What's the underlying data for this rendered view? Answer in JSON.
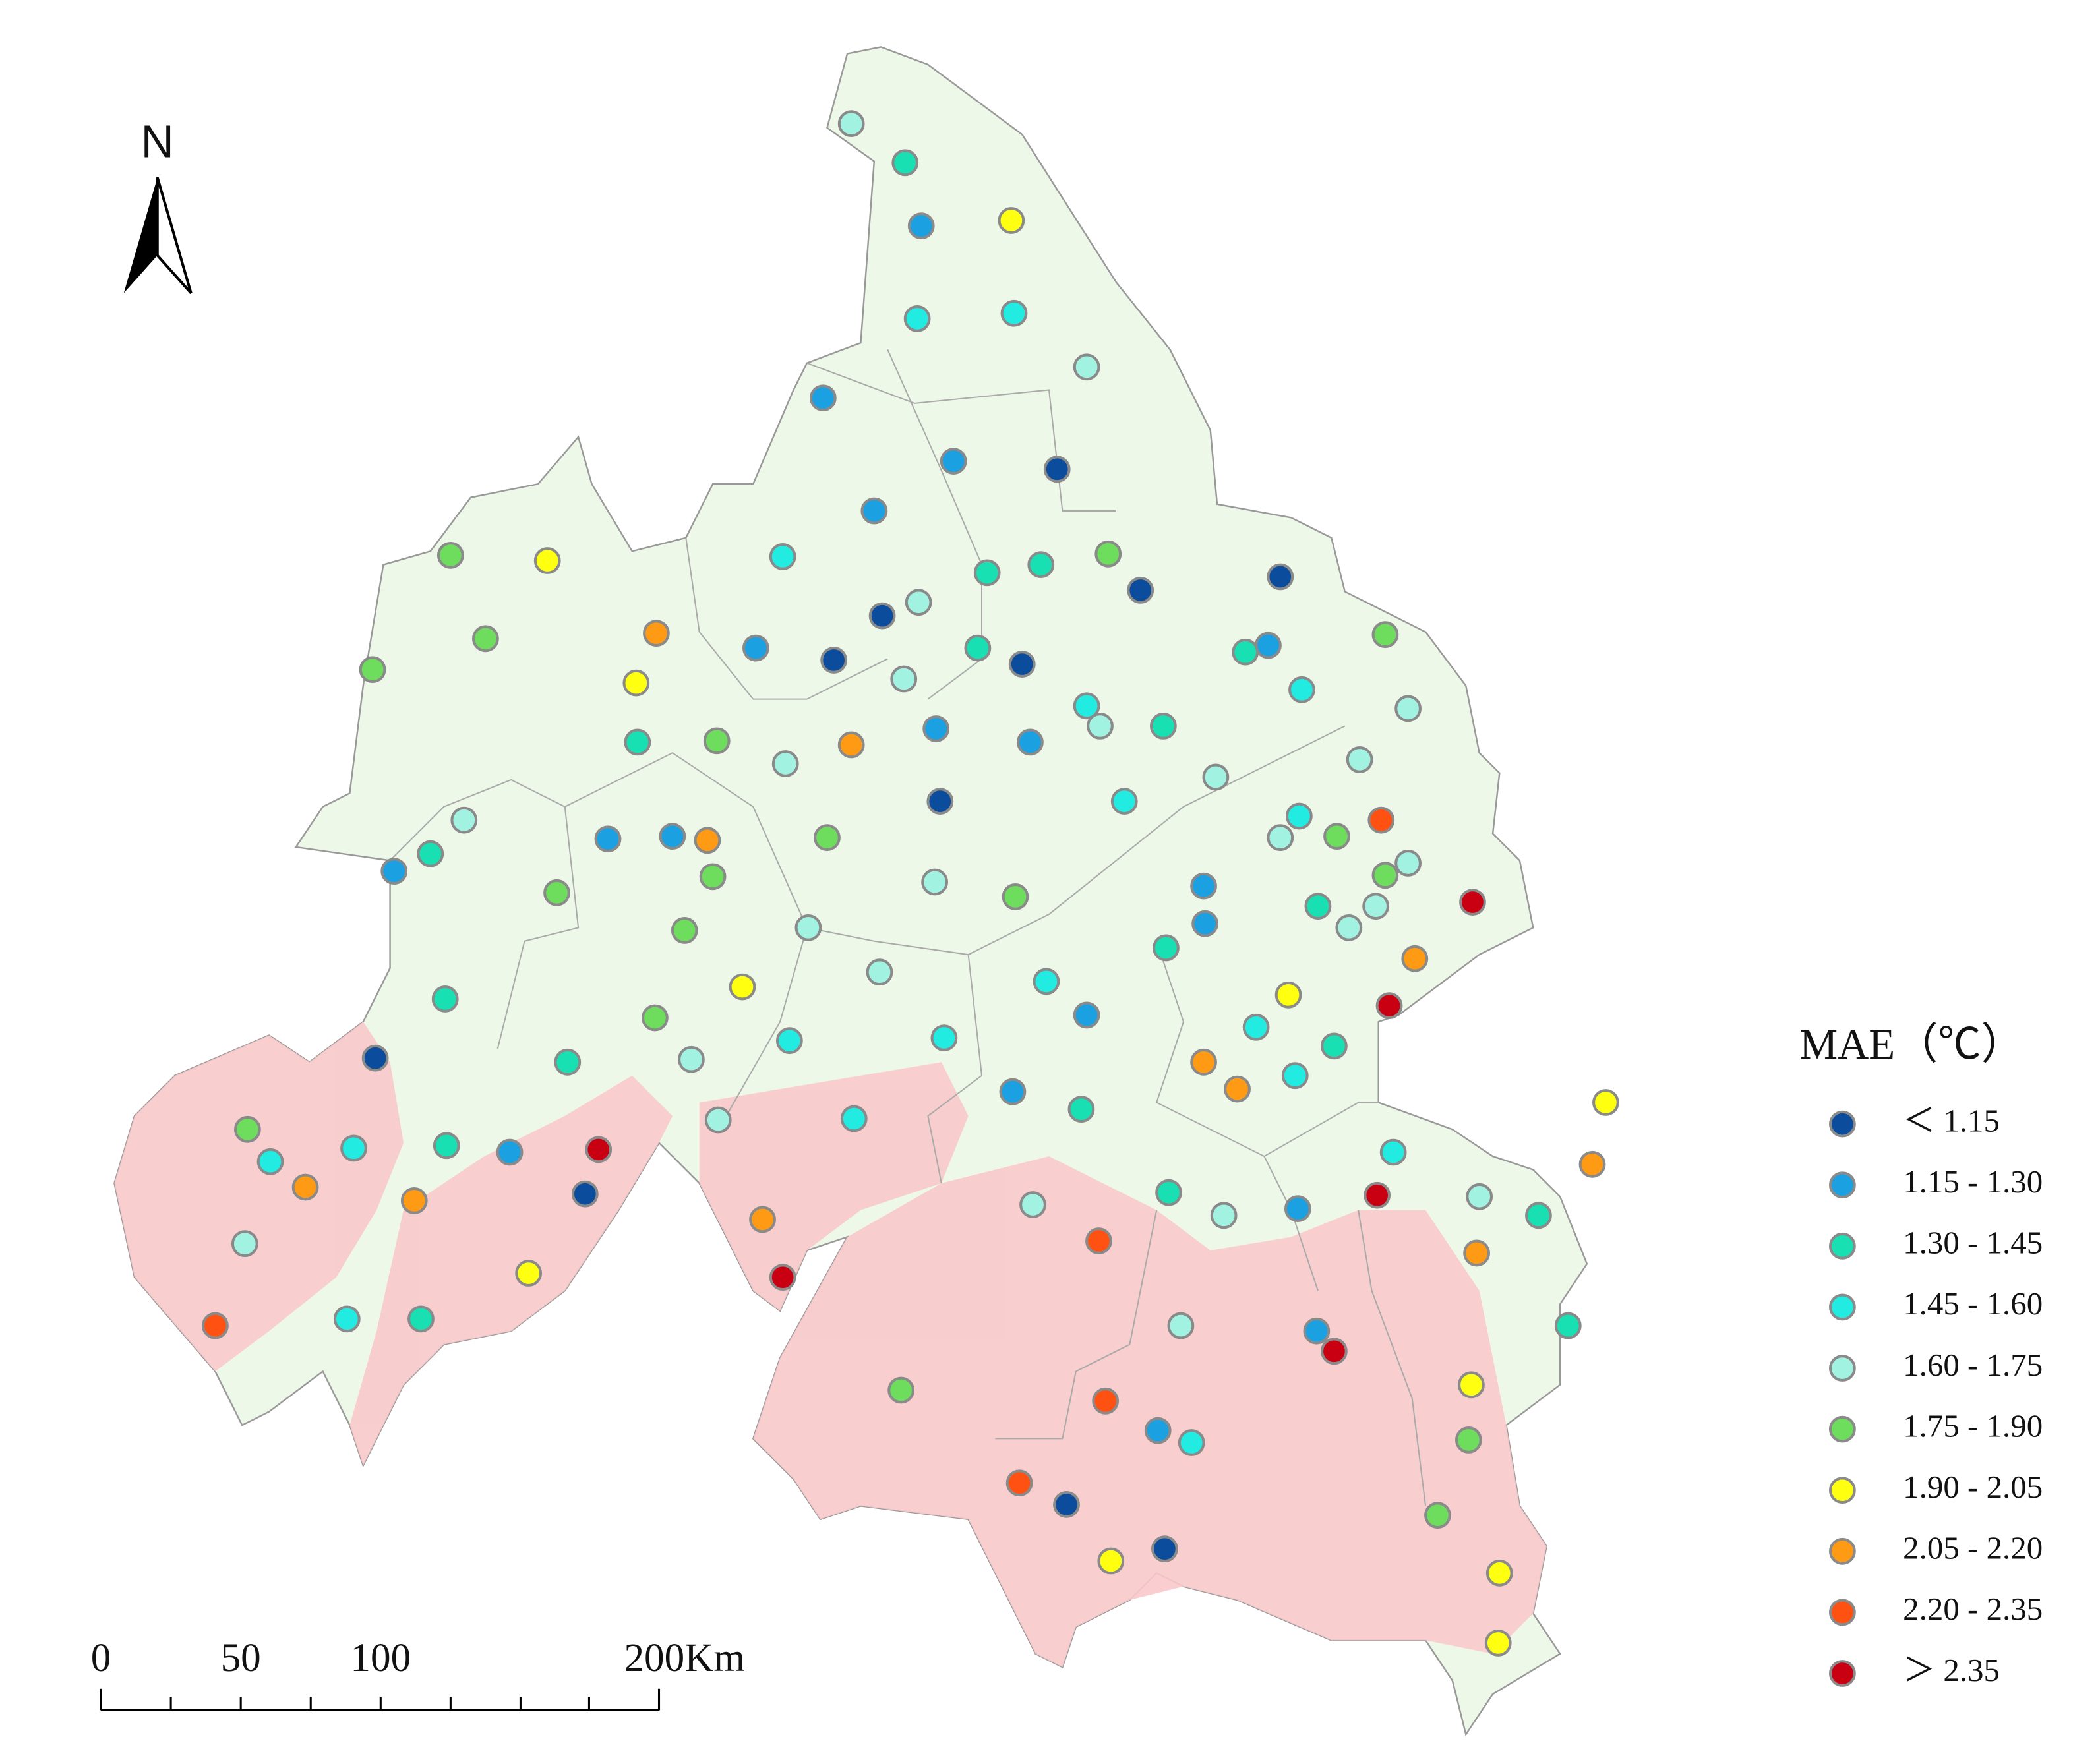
{
  "north_arrow": {
    "label": "N"
  },
  "scale_bar": {
    "labels": [
      "0",
      "50",
      "100",
      "200Km"
    ]
  },
  "legend": {
    "title": "MAE（℃）",
    "classes": [
      {
        "label": "＜ 1.15",
        "color": "#0b4c9c"
      },
      {
        "label": "1.15 - 1.30",
        "color": "#1ba0e2"
      },
      {
        "label": "1.30 - 1.45",
        "color": "#18e0b2"
      },
      {
        "label": "1.45 - 1.60",
        "color": "#22ebe2"
      },
      {
        "label": "1.60 - 1.75",
        "color": "#a2f2e2"
      },
      {
        "label": "1.75 - 1.90",
        "color": "#6edc5c"
      },
      {
        "label": "1.90 - 2.05",
        "color": "#ffff10"
      },
      {
        "label": "2.05 - 2.20",
        "color": "#ff9a14"
      },
      {
        "label": "2.20 - 2.35",
        "color": "#ff5212"
      },
      {
        "label": "＞ 2.35",
        "color": "#c80012"
      }
    ]
  }
}
